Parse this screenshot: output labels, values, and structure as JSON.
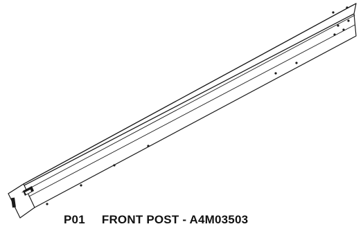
{
  "part": {
    "id": "P01",
    "title": "FRONT POST - A4M03503"
  },
  "colors": {
    "line": "#1a1a1a",
    "face": "#ffffff",
    "text": "#111111"
  }
}
